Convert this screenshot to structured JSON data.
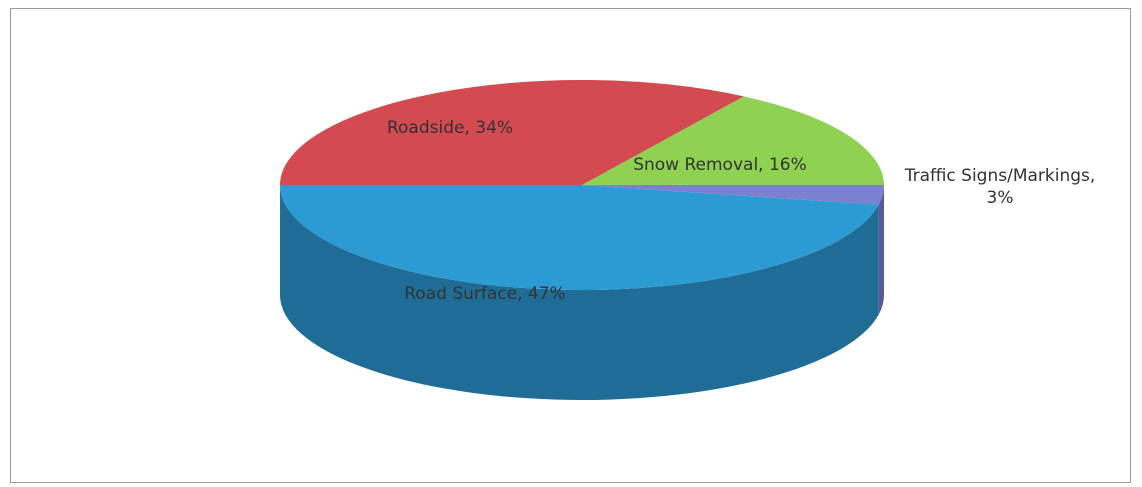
{
  "chart_data": {
    "type": "pie",
    "values": [
      47,
      3,
      16,
      34
    ],
    "value_labels": [
      "Road Surface, 47%",
      "Traffic Signs/Markings, 3%",
      "Snow Removal, 16%",
      "Roadside, 34%"
    ],
    "colors": [
      "#2c9bd4",
      "#7b80cf",
      "#8fd150",
      "#d34a50"
    ],
    "side_colors": [
      "#1f6d96",
      "#565a99",
      "#64953a",
      "#963539"
    ]
  }
}
